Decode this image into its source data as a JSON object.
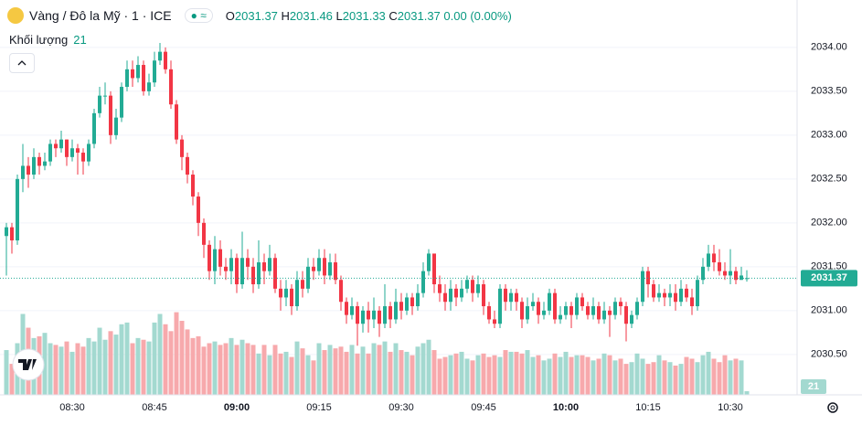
{
  "header": {
    "title": "Vàng / Đô la Mỹ · 1 · ICE",
    "ohlc_labels": [
      "O",
      "H",
      "L",
      "C"
    ],
    "change": "0.00 (0.00%)",
    "volume_label": "Khối lượng"
  },
  "chart_data": {
    "type": "candlestick",
    "categories": [
      null,
      null,
      null,
      null,
      null,
      null,
      null,
      null,
      null,
      null,
      null,
      null,
      "08:30",
      null,
      null,
      null,
      null,
      null,
      null,
      null,
      null,
      null,
      null,
      null,
      null,
      null,
      null,
      "08:45",
      null,
      null,
      null,
      null,
      null,
      null,
      null,
      null,
      null,
      null,
      null,
      null,
      null,
      null,
      "09:00",
      null,
      null,
      null,
      null,
      null,
      null,
      null,
      null,
      null,
      null,
      null,
      null,
      null,
      null,
      "09:15",
      null,
      null,
      null,
      null,
      null,
      null,
      null,
      null,
      null,
      null,
      null,
      null,
      null,
      null,
      "09:30",
      null,
      null,
      null,
      null,
      null,
      null,
      null,
      null,
      null,
      null,
      null,
      null,
      null,
      null,
      "09:45",
      null,
      null,
      null,
      null,
      null,
      null,
      null,
      null,
      null,
      null,
      null,
      null,
      null,
      null,
      "10:00",
      null,
      null,
      null,
      null,
      null,
      null,
      null,
      null,
      null,
      null,
      null,
      null,
      null,
      null,
      "10:15",
      null,
      null,
      null,
      null,
      null,
      null,
      null,
      null,
      null,
      null,
      null,
      null,
      null,
      null,
      "10:30",
      null,
      null,
      null
    ],
    "ohlc": [
      [
        2031.85,
        2032.0,
        2031.4,
        2031.95
      ],
      [
        2031.95,
        2032.0,
        2031.65,
        2031.8
      ],
      [
        2031.8,
        2032.55,
        2031.75,
        2032.5
      ],
      [
        2032.5,
        2032.9,
        2032.35,
        2032.65
      ],
      [
        2032.65,
        2032.75,
        2032.4,
        2032.55
      ],
      [
        2032.55,
        2032.85,
        2032.5,
        2032.75
      ],
      [
        2032.75,
        2032.8,
        2032.55,
        2032.65
      ],
      [
        2032.65,
        2032.8,
        2032.6,
        2032.7
      ],
      [
        2032.7,
        2032.95,
        2032.65,
        2032.9
      ],
      [
        2032.9,
        2032.95,
        2032.75,
        2032.85
      ],
      [
        2032.85,
        2033.05,
        2032.8,
        2032.95
      ],
      [
        2032.95,
        2032.95,
        2032.65,
        2032.75
      ],
      [
        2032.75,
        2032.95,
        2032.7,
        2032.85
      ],
      [
        2032.85,
        2032.9,
        2032.55,
        2032.8
      ],
      [
        2032.8,
        2032.85,
        2032.55,
        2032.7
      ],
      [
        2032.7,
        2032.95,
        2032.65,
        2032.9
      ],
      [
        2032.9,
        2033.3,
        2032.85,
        2033.25
      ],
      [
        2033.25,
        2033.55,
        2033.2,
        2033.45
      ],
      [
        2033.45,
        2033.6,
        2033.35,
        2033.45
      ],
      [
        2033.45,
        2033.5,
        2032.9,
        2033.0
      ],
      [
        2033.0,
        2033.3,
        2032.95,
        2033.2
      ],
      [
        2033.2,
        2033.6,
        2033.15,
        2033.55
      ],
      [
        2033.55,
        2033.85,
        2033.5,
        2033.75
      ],
      [
        2033.75,
        2033.85,
        2033.55,
        2033.65
      ],
      [
        2033.65,
        2033.9,
        2033.6,
        2033.8
      ],
      [
        2033.8,
        2033.85,
        2033.45,
        2033.5
      ],
      [
        2033.5,
        2033.7,
        2033.45,
        2033.6
      ],
      [
        2033.6,
        2033.95,
        2033.55,
        2033.85
      ],
      [
        2033.85,
        2034.05,
        2033.8,
        2033.95
      ],
      [
        2033.95,
        2034.0,
        2033.7,
        2033.75
      ],
      [
        2033.75,
        2033.85,
        2033.3,
        2033.35
      ],
      [
        2033.35,
        2033.4,
        2032.9,
        2032.95
      ],
      [
        2032.95,
        2033.0,
        2032.6,
        2032.75
      ],
      [
        2032.75,
        2032.8,
        2032.45,
        2032.55
      ],
      [
        2032.55,
        2032.6,
        2032.2,
        2032.3
      ],
      [
        2032.3,
        2032.35,
        2031.85,
        2032.0
      ],
      [
        2032.0,
        2032.05,
        2031.6,
        2031.75
      ],
      [
        2031.75,
        2031.8,
        2031.35,
        2031.45
      ],
      [
        2031.45,
        2031.85,
        2031.3,
        2031.7
      ],
      [
        2031.7,
        2031.8,
        2031.4,
        2031.5
      ],
      [
        2031.5,
        2031.6,
        2031.35,
        2031.45
      ],
      [
        2031.45,
        2031.7,
        2031.3,
        2031.6
      ],
      [
        2031.6,
        2031.65,
        2031.2,
        2031.3
      ],
      [
        2031.3,
        2031.9,
        2031.25,
        2031.6
      ],
      [
        2031.6,
        2031.7,
        2031.35,
        2031.5
      ],
      [
        2031.5,
        2031.6,
        2031.2,
        2031.3
      ],
      [
        2031.3,
        2031.8,
        2031.25,
        2031.55
      ],
      [
        2031.55,
        2031.65,
        2031.3,
        2031.45
      ],
      [
        2031.45,
        2031.75,
        2031.4,
        2031.6
      ],
      [
        2031.6,
        2031.65,
        2031.2,
        2031.25
      ],
      [
        2031.25,
        2031.35,
        2031.0,
        2031.15
      ],
      [
        2031.15,
        2031.35,
        2031.05,
        2031.25
      ],
      [
        2031.25,
        2031.3,
        2030.95,
        2031.05
      ],
      [
        2031.05,
        2031.45,
        2031.0,
        2031.35
      ],
      [
        2031.35,
        2031.45,
        2031.15,
        2031.25
      ],
      [
        2031.25,
        2031.6,
        2031.2,
        2031.5
      ],
      [
        2031.5,
        2031.6,
        2031.35,
        2031.45
      ],
      [
        2031.45,
        2031.7,
        2031.4,
        2031.6
      ],
      [
        2031.6,
        2031.7,
        2031.3,
        2031.4
      ],
      [
        2031.4,
        2031.65,
        2031.35,
        2031.55
      ],
      [
        2031.55,
        2031.65,
        2031.3,
        2031.35
      ],
      [
        2031.35,
        2031.4,
        2031.0,
        2031.1
      ],
      [
        2031.1,
        2031.15,
        2030.85,
        2030.95
      ],
      [
        2030.95,
        2031.15,
        2030.9,
        2031.05
      ],
      [
        2031.05,
        2031.1,
        2030.6,
        2030.85
      ],
      [
        2030.85,
        2031.05,
        2030.75,
        2031.0
      ],
      [
        2031.0,
        2031.1,
        2030.75,
        2030.9
      ],
      [
        2030.9,
        2031.15,
        2030.8,
        2031.0
      ],
      [
        2031.0,
        2031.05,
        2030.7,
        2030.85
      ],
      [
        2030.85,
        2031.3,
        2030.8,
        2031.05
      ],
      [
        2031.05,
        2031.1,
        2030.8,
        2030.9
      ],
      [
        2030.9,
        2031.25,
        2030.85,
        2031.1
      ],
      [
        2031.1,
        2031.2,
        2030.9,
        2031.0
      ],
      [
        2031.0,
        2031.2,
        2030.95,
        2031.15
      ],
      [
        2031.15,
        2031.2,
        2030.95,
        2031.05
      ],
      [
        2031.05,
        2031.3,
        2031.0,
        2031.2
      ],
      [
        2031.2,
        2031.55,
        2031.15,
        2031.45
      ],
      [
        2031.45,
        2031.7,
        2031.4,
        2031.65
      ],
      [
        2031.65,
        2031.65,
        2031.2,
        2031.3
      ],
      [
        2031.3,
        2031.4,
        2031.1,
        2031.2
      ],
      [
        2031.2,
        2031.3,
        2031.0,
        2031.1
      ],
      [
        2031.1,
        2031.35,
        2031.0,
        2031.25
      ],
      [
        2031.25,
        2031.3,
        2031.05,
        2031.15
      ],
      [
        2031.15,
        2031.35,
        2031.1,
        2031.25
      ],
      [
        2031.25,
        2031.4,
        2031.2,
        2031.35
      ],
      [
        2031.35,
        2031.4,
        2031.1,
        2031.2
      ],
      [
        2031.2,
        2031.4,
        2031.15,
        2031.3
      ],
      [
        2031.3,
        2031.35,
        2030.95,
        2031.05
      ],
      [
        2031.05,
        2031.1,
        2030.85,
        2030.9
      ],
      [
        2030.9,
        2031.0,
        2030.8,
        2030.85
      ],
      [
        2030.85,
        2031.3,
        2030.8,
        2031.25
      ],
      [
        2031.25,
        2031.3,
        2031.0,
        2031.1
      ],
      [
        2031.1,
        2031.25,
        2031.0,
        2031.2
      ],
      [
        2031.2,
        2031.25,
        2031.0,
        2031.1
      ],
      [
        2031.1,
        2031.15,
        2030.8,
        2030.9
      ],
      [
        2030.9,
        2031.15,
        2030.85,
        2031.05
      ],
      [
        2031.05,
        2031.2,
        2031.0,
        2031.1
      ],
      [
        2031.1,
        2031.15,
        2030.85,
        2030.95
      ],
      [
        2030.95,
        2031.1,
        2030.9,
        2031.0
      ],
      [
        2031.0,
        2031.25,
        2030.95,
        2031.2
      ],
      [
        2031.2,
        2031.25,
        2030.85,
        2030.9
      ],
      [
        2030.9,
        2031.05,
        2030.85,
        2030.95
      ],
      [
        2030.95,
        2031.1,
        2030.9,
        2031.05
      ],
      [
        2031.05,
        2031.1,
        2030.8,
        2030.95
      ],
      [
        2030.95,
        2031.2,
        2030.9,
        2031.15
      ],
      [
        2031.15,
        2031.2,
        2031.0,
        2031.05
      ],
      [
        2031.05,
        2031.1,
        2030.9,
        2030.95
      ],
      [
        2030.95,
        2031.15,
        2030.9,
        2031.05
      ],
      [
        2031.05,
        2031.1,
        2030.85,
        2030.9
      ],
      [
        2030.9,
        2031.1,
        2030.85,
        2031.0
      ],
      [
        2031.0,
        2031.05,
        2030.7,
        2030.95
      ],
      [
        2030.95,
        2031.15,
        2030.9,
        2031.1
      ],
      [
        2031.1,
        2031.15,
        2030.95,
        2031.05
      ],
      [
        2031.05,
        2031.1,
        2030.65,
        2030.85
      ],
      [
        2030.85,
        2031.0,
        2030.8,
        2030.95
      ],
      [
        2030.95,
        2031.15,
        2030.9,
        2031.1
      ],
      [
        2031.1,
        2031.5,
        2031.05,
        2031.45
      ],
      [
        2031.45,
        2031.5,
        2031.15,
        2031.3
      ],
      [
        2031.3,
        2031.35,
        2031.1,
        2031.15
      ],
      [
        2031.15,
        2031.3,
        2031.1,
        2031.2
      ],
      [
        2031.2,
        2031.25,
        2031.05,
        2031.15
      ],
      [
        2031.15,
        2031.3,
        2031.05,
        2031.2
      ],
      [
        2031.2,
        2031.3,
        2031.0,
        2031.1
      ],
      [
        2031.1,
        2031.35,
        2031.05,
        2031.25
      ],
      [
        2031.25,
        2031.3,
        2031.1,
        2031.15
      ],
      [
        2031.15,
        2031.25,
        2030.95,
        2031.05
      ],
      [
        2031.05,
        2031.4,
        2031.0,
        2031.35
      ],
      [
        2031.35,
        2031.6,
        2031.3,
        2031.5
      ],
      [
        2031.5,
        2031.75,
        2031.45,
        2031.65
      ],
      [
        2031.65,
        2031.75,
        2031.45,
        2031.55
      ],
      [
        2031.55,
        2031.7,
        2031.4,
        2031.45
      ],
      [
        2031.45,
        2031.55,
        2031.35,
        2031.4
      ],
      [
        2031.4,
        2031.7,
        2031.3,
        2031.45
      ],
      [
        2031.45,
        2031.5,
        2031.3,
        2031.35
      ],
      [
        2031.35,
        2031.5,
        2031.35,
        2031.4
      ],
      [
        2031.37,
        2031.46,
        2031.33,
        2031.37
      ]
    ],
    "volume": [
      260,
      180,
      300,
      470,
      390,
      330,
      340,
      360,
      300,
      290,
      280,
      310,
      250,
      300,
      280,
      330,
      310,
      390,
      320,
      370,
      350,
      410,
      420,
      300,
      330,
      320,
      310,
      420,
      470,
      410,
      370,
      480,
      430,
      380,
      330,
      340,
      280,
      300,
      310,
      290,
      300,
      330,
      290,
      320,
      300,
      290,
      240,
      290,
      230,
      290,
      240,
      250,
      220,
      310,
      270,
      230,
      200,
      300,
      260,
      290,
      270,
      280,
      250,
      290,
      240,
      280,
      240,
      300,
      290,
      310,
      250,
      300,
      260,
      250,
      230,
      280,
      300,
      320,
      260,
      210,
      220,
      230,
      240,
      250,
      210,
      200,
      230,
      240,
      220,
      230,
      220,
      260,
      250,
      250,
      240,
      260,
      220,
      230,
      200,
      210,
      240,
      220,
      250,
      220,
      230,
      230,
      220,
      200,
      210,
      240,
      230,
      200,
      210,
      180,
      190,
      240,
      210,
      180,
      190,
      230,
      200,
      190,
      170,
      180,
      220,
      210,
      190,
      230,
      250,
      210,
      190,
      230,
      200,
      210,
      200,
      21
    ],
    "ylim": [
      2030.04,
      2034.54
    ],
    "yticks": [
      {
        "value": 2030.5,
        "label": "2030.50"
      },
      {
        "value": 2031,
        "label": "2031.00"
      },
      {
        "value": 2031.5,
        "label": "2031.50"
      },
      {
        "value": 2032,
        "label": "2032.00"
      },
      {
        "value": 2032.5,
        "label": "2032.50"
      },
      {
        "value": 2033,
        "label": "2033.00"
      },
      {
        "value": 2033.5,
        "label": "2033.50"
      },
      {
        "value": 2034,
        "label": "2034.00"
      }
    ],
    "y2lim": [
      0,
      600
    ],
    "up_color": "#22ab94",
    "down_color": "#f23645",
    "volume_up_color": "#a3d9d0",
    "volume_down_color": "#f7a9ac"
  }
}
